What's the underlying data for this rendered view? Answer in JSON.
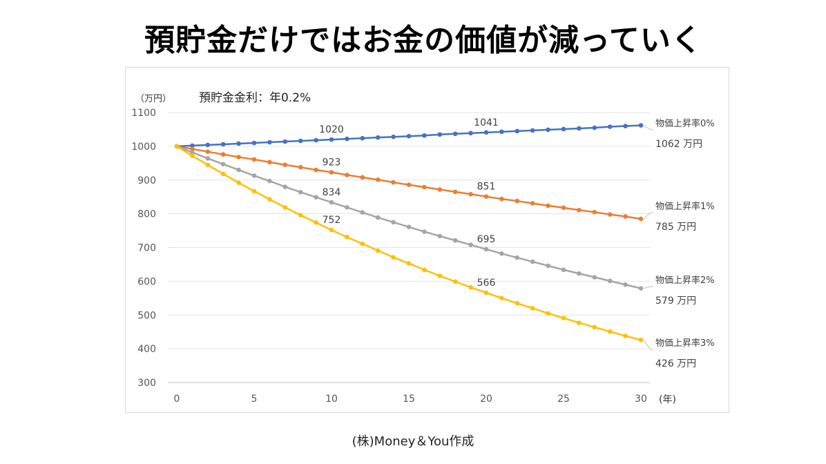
{
  "title": "預貯金だけではお金の価値が減っていく",
  "footer": "(株)Money＆You作成",
  "chart_data": {
    "type": "line",
    "subtitle": "預貯金金利：年0.2%",
    "ylabel": "（万円）",
    "xlabel": "(年)",
    "ylim": [
      300,
      1100
    ],
    "xlim": [
      0,
      30
    ],
    "yticks": [
      300,
      400,
      500,
      600,
      700,
      800,
      900,
      1000,
      1100
    ],
    "xticks": [
      0,
      5,
      10,
      15,
      20,
      25,
      30
    ],
    "grid": true,
    "x": [
      0,
      1,
      2,
      3,
      4,
      5,
      6,
      7,
      8,
      9,
      10,
      11,
      12,
      13,
      14,
      15,
      16,
      17,
      18,
      19,
      20,
      21,
      22,
      23,
      24,
      25,
      26,
      27,
      28,
      29,
      30
    ],
    "series": [
      {
        "name": "物価上昇率0%",
        "end_label": "1062 万円",
        "color": "#4472C4",
        "values": [
          1000,
          1002,
          1004,
          1006,
          1008,
          1010,
          1012,
          1014,
          1016,
          1018,
          1020,
          1022,
          1024,
          1026,
          1028,
          1030,
          1032,
          1035,
          1037,
          1039,
          1041,
          1043,
          1045,
          1047,
          1049,
          1051,
          1053,
          1055,
          1058,
          1060,
          1062
        ],
        "data_labels": [
          {
            "x": 10,
            "text": "1020"
          },
          {
            "x": 20,
            "text": "1041"
          }
        ]
      },
      {
        "name": "物価上昇率1%",
        "end_label": "785 万円",
        "color": "#ED7D31",
        "values": [
          1000,
          992,
          984,
          976,
          968,
          961,
          953,
          945,
          938,
          930,
          923,
          915,
          908,
          901,
          893,
          886,
          879,
          872,
          865,
          858,
          851,
          844,
          838,
          831,
          824,
          818,
          811,
          805,
          798,
          792,
          785
        ],
        "data_labels": [
          {
            "x": 10,
            "text": "923"
          },
          {
            "x": 20,
            "text": "851"
          }
        ]
      },
      {
        "name": "物価上昇率2%",
        "end_label": "579 万円",
        "color": "#A5A5A5",
        "values": [
          1000,
          982,
          964,
          947,
          930,
          913,
          897,
          880,
          864,
          849,
          834,
          819,
          804,
          789,
          775,
          761,
          747,
          734,
          721,
          708,
          695,
          682,
          670,
          658,
          646,
          634,
          623,
          612,
          601,
          590,
          579
        ],
        "data_labels": [
          {
            "x": 10,
            "text": "834"
          },
          {
            "x": 20,
            "text": "695"
          }
        ]
      },
      {
        "name": "物価上昇率3%",
        "end_label": "426 万円",
        "color": "#FFC000",
        "values": [
          1000,
          972,
          945,
          918,
          892,
          867,
          843,
          819,
          796,
          774,
          752,
          731,
          711,
          691,
          671,
          653,
          634,
          616,
          599,
          582,
          566,
          550,
          535,
          520,
          505,
          491,
          477,
          464,
          451,
          438,
          426
        ],
        "data_labels": [
          {
            "x": 10,
            "text": "752"
          },
          {
            "x": 20,
            "text": "566"
          }
        ]
      }
    ]
  }
}
